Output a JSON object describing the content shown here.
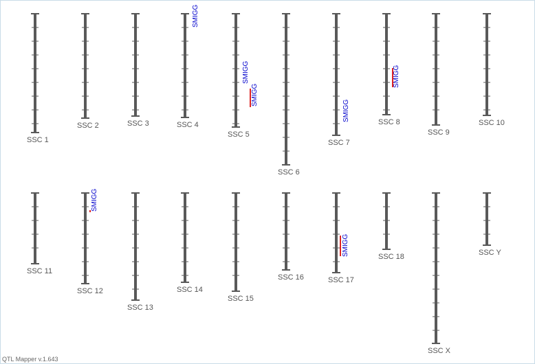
{
  "app": {
    "version_label": "QTL Mapper v.1.643"
  },
  "colors": {
    "chromosome": "#595959",
    "tick": "#595959",
    "qtl_bar": "#dd2222",
    "qtl_label": "#0000cc",
    "chr_label": "#555555"
  },
  "chromosomes": [
    {
      "label": "SSC 1",
      "qtls": []
    },
    {
      "label": "SSC 2",
      "qtls": []
    },
    {
      "label": "SSC 3",
      "qtls": []
    },
    {
      "label": "SSC 4",
      "qtls": [
        {
          "label": "SMIGG"
        }
      ]
    },
    {
      "label": "SSC 5",
      "qtls": [
        {
          "label": "SMIGG"
        },
        {
          "label": "SMIGG"
        }
      ]
    },
    {
      "label": "SSC 6",
      "qtls": []
    },
    {
      "label": "SSC 7",
      "qtls": [
        {
          "label": "SMIGG"
        }
      ]
    },
    {
      "label": "SSC 8",
      "qtls": [
        {
          "label": "SMIGG"
        }
      ]
    },
    {
      "label": "SSC 9",
      "qtls": []
    },
    {
      "label": "SSC 10",
      "qtls": []
    },
    {
      "label": "SSC 11",
      "qtls": []
    },
    {
      "label": "SSC 12",
      "qtls": [
        {
          "label": "SMIGG"
        }
      ]
    },
    {
      "label": "SSC 13",
      "qtls": []
    },
    {
      "label": "SSC 14",
      "qtls": []
    },
    {
      "label": "SSC 15",
      "qtls": []
    },
    {
      "label": "SSC 16",
      "qtls": []
    },
    {
      "label": "SSC 17",
      "qtls": [
        {
          "label": "SMIGG"
        }
      ]
    },
    {
      "label": "SSC 18",
      "qtls": []
    },
    {
      "label": "SSC X",
      "qtls": []
    },
    {
      "label": "SSC Y",
      "qtls": []
    }
  ]
}
